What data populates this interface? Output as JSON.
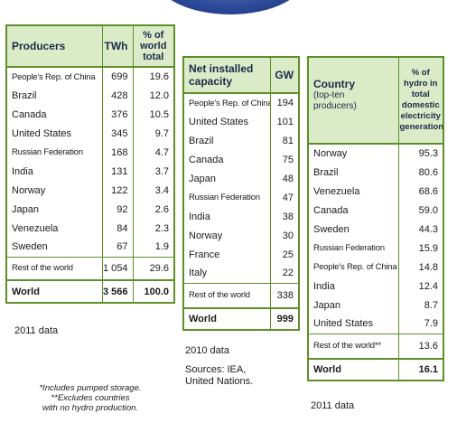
{
  "producers_table": {
    "headers": {
      "name": "Producers",
      "twh": "TWh",
      "pct": "% of world total"
    },
    "rows": [
      {
        "name": "People's Rep. of China",
        "twh": "699",
        "pct": "19.6"
      },
      {
        "name": "Brazil",
        "twh": "428",
        "pct": "12.0"
      },
      {
        "name": "Canada",
        "twh": "376",
        "pct": "10.5"
      },
      {
        "name": "United States",
        "twh": "345",
        "pct": "9.7"
      },
      {
        "name": "Russian Federation",
        "twh": "168",
        "pct": "4.7"
      },
      {
        "name": "India",
        "twh": "131",
        "pct": "3.7"
      },
      {
        "name": "Norway",
        "twh": "122",
        "pct": "3.4"
      },
      {
        "name": "Japan",
        "twh": "92",
        "pct": "2.6"
      },
      {
        "name": "Venezuela",
        "twh": "84",
        "pct": "2.3"
      },
      {
        "name": "Sweden",
        "twh": "67",
        "pct": "1.9"
      }
    ],
    "rest": {
      "name": "Rest of the world",
      "twh": "1 054",
      "pct": "29.6"
    },
    "world": {
      "name": "World",
      "twh": "3 566",
      "pct": "100.0"
    },
    "note": "2011 data"
  },
  "capacity_table": {
    "headers": {
      "name": "Net installed capacity",
      "gw": "GW"
    },
    "rows": [
      {
        "name": "People's Rep. of China",
        "gw": "194"
      },
      {
        "name": "United States",
        "gw": "101"
      },
      {
        "name": "Brazil",
        "gw": "81"
      },
      {
        "name": "Canada",
        "gw": "75"
      },
      {
        "name": "Japan",
        "gw": "48"
      },
      {
        "name": "Russian Federation",
        "gw": "47"
      },
      {
        "name": "India",
        "gw": "38"
      },
      {
        "name": "Norway",
        "gw": "30"
      },
      {
        "name": "France",
        "gw": "25"
      },
      {
        "name": "Italy",
        "gw": "22"
      }
    ],
    "rest": {
      "name": "Rest of the world",
      "gw": "338"
    },
    "world": {
      "name": "World",
      "gw": "999"
    },
    "note": "2010 data",
    "sources_line1": "Sources: IEA,",
    "sources_line2": "United Nations."
  },
  "share_table": {
    "headers": {
      "country": "Country",
      "country_sub": "(top-ten producers)",
      "pct": "% of hydro in total domestic electricity generation"
    },
    "rows": [
      {
        "name": "Norway",
        "pct": "95.3"
      },
      {
        "name": "Brazil",
        "pct": "80.6"
      },
      {
        "name": "Venezuela",
        "pct": "68.6"
      },
      {
        "name": "Canada",
        "pct": "59.0"
      },
      {
        "name": "Sweden",
        "pct": "44.3"
      },
      {
        "name": "Russian Federation",
        "pct": "15.9"
      },
      {
        "name": "People's Rep. of China",
        "pct": "14.8"
      },
      {
        "name": "India",
        "pct": "12.4"
      },
      {
        "name": "Japan",
        "pct": "8.7"
      },
      {
        "name": "United States",
        "pct": "7.9"
      }
    ],
    "rest": {
      "name": "Rest of the world**",
      "pct": "13.6"
    },
    "world": {
      "name": "World",
      "pct": "16.1"
    },
    "note": "2011 data"
  },
  "footnotes": {
    "line1": "*Includes pumped storage.",
    "line2": "**Excludes countries",
    "line3": "with no hydro production."
  }
}
